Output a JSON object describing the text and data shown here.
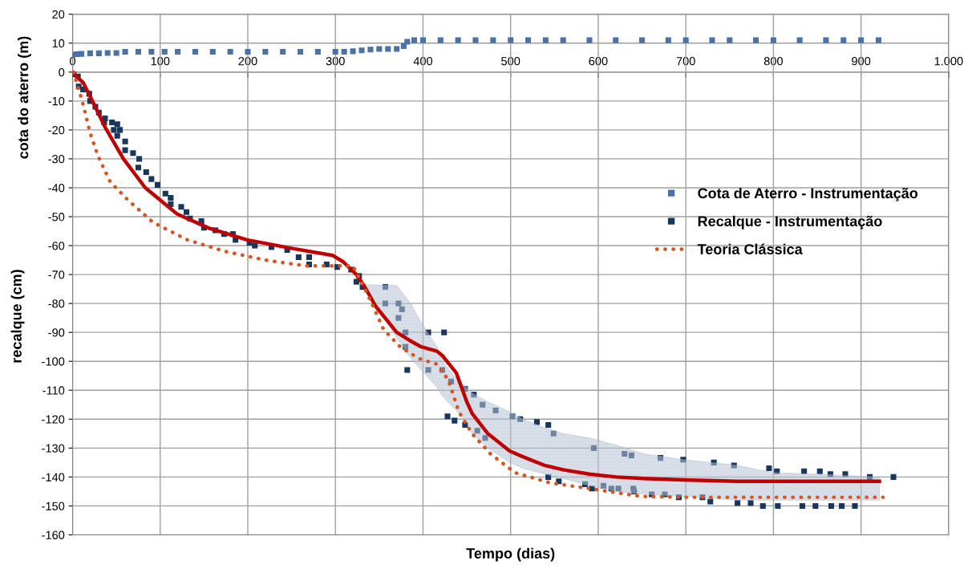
{
  "chart_data": {
    "type": "scatter",
    "xlabel": "Tempo (dias)",
    "ylabel": "recalque (cm)",
    "annotations": [
      "cota do aterro (m)"
    ],
    "xlim": [
      0,
      1000
    ],
    "xticks": [
      0,
      100,
      200,
      300,
      400,
      500,
      600,
      700,
      800,
      900,
      {
        "value": 1000,
        "label": "1.000"
      }
    ],
    "ylim": [
      -160,
      20
    ],
    "yticks": [
      -160,
      -150,
      -140,
      -130,
      -120,
      -110,
      -100,
      -90,
      -80,
      -70,
      -60,
      -50,
      -40,
      -30,
      -20,
      -10,
      0,
      10,
      20
    ],
    "grid": true,
    "legend": "right",
    "series": [
      {
        "name": "Cota de Aterro - Instrumentação",
        "marker": "square",
        "color": "#4a72a8",
        "x": [
          0,
          5,
          10,
          20,
          30,
          40,
          50,
          60,
          75,
          90,
          105,
          120,
          140,
          160,
          180,
          200,
          220,
          240,
          260,
          280,
          300,
          310,
          320,
          330,
          340,
          350,
          360,
          370,
          378,
          382,
          390,
          400,
          420,
          440,
          460,
          480,
          500,
          520,
          540,
          560,
          590,
          620,
          650,
          680,
          700,
          730,
          750,
          780,
          800,
          830,
          860,
          880,
          900,
          920
        ],
        "values": [
          6,
          6.2,
          6.3,
          6.5,
          6.5,
          6.6,
          6.6,
          7,
          7,
          7,
          7,
          7,
          7,
          7,
          7,
          7,
          7,
          7,
          7,
          7,
          7,
          7,
          7.2,
          7.5,
          7.8,
          8,
          8,
          8,
          9,
          10.5,
          11,
          11,
          11,
          11,
          11,
          11,
          11,
          11,
          11,
          11,
          11,
          11,
          11,
          11,
          11,
          11,
          11,
          11,
          11,
          11,
          11,
          11,
          11,
          11
        ]
      },
      {
        "name": "Recalque - Instrumentação",
        "marker": "square",
        "color": "#17375e",
        "x": [
          1,
          6,
          7,
          12,
          19,
          20,
          26,
          30,
          37,
          36,
          45,
          51,
          47,
          54,
          51,
          60,
          60,
          69,
          76,
          75,
          84,
          90,
          97,
          106,
          112,
          112,
          124,
          130,
          134,
          147,
          150,
          163,
          173,
          183,
          186,
          202,
          208,
          227,
          245,
          258,
          270,
          270,
          290,
          302,
          318,
          327,
          324,
          331,
          357,
          357,
          372,
          376,
          372,
          380,
          406,
          424,
          380,
          382,
          406,
          422,
          432,
          448,
          458,
          468,
          428,
          436,
          448,
          462,
          471,
          483,
          502,
          511,
          530,
          543,
          549,
          595,
          630,
          543,
          555,
          585,
          606,
          615,
          640,
          638,
          671,
          697,
          732,
          755,
          795,
          804,
          835,
          853,
          865,
          882,
          910,
          937,
          593,
          623,
          641,
          661,
          676,
          692,
          719,
          728,
          759,
          774,
          788,
          805,
          833,
          848,
          866,
          878,
          893
        ],
        "values": [
          -0.8,
          -1.5,
          -5,
          -6,
          -7.5,
          -10,
          -12,
          -14,
          -16,
          -17.4,
          -17.4,
          -18,
          -20,
          -20,
          -22,
          -24,
          -27,
          -28,
          -30,
          -33,
          -34.6,
          -37,
          -39,
          -42,
          -43.5,
          -45.7,
          -46.6,
          -48.4,
          -50.6,
          -51.5,
          -53.8,
          -54.7,
          -56,
          -56,
          -58,
          -59,
          -60,
          -60.5,
          -61.5,
          -64,
          -64,
          -66.5,
          -66.5,
          -67.4,
          -68.3,
          -70.5,
          -72.5,
          -74.3,
          -74.3,
          -80,
          -80,
          -82,
          -85,
          -90,
          -90,
          -90,
          -95,
          -103,
          -103,
          -103,
          -107,
          -109.5,
          -111.5,
          -115,
          -119,
          -120.5,
          -122,
          -124,
          -126.5,
          -117,
          -119,
          -120,
          -121,
          -122,
          -125,
          -130,
          -132,
          -140,
          -141.5,
          -142.5,
          -143,
          -144,
          -144,
          -132.5,
          -133.4,
          -134,
          -135,
          -136,
          -137,
          -138,
          -138,
          -138,
          -139,
          -139,
          -140,
          -140,
          -144,
          -144,
          -145,
          -146,
          -146,
          -147,
          -147,
          -148.5,
          -149,
          -149,
          -150,
          -150,
          -150,
          -150,
          -150,
          -150,
          -150
        ]
      },
      {
        "type": "line",
        "color": "#c00000",
        "line_style": "solid",
        "marker": "none",
        "x": [
          1,
          12,
          21,
          37,
          58,
          83,
          119,
          156,
          199,
          251,
          297,
          309,
          324,
          333,
          346,
          370,
          386,
          398,
          416,
          422,
          438,
          450,
          456,
          474,
          499,
          514,
          539,
          560,
          590,
          621,
          652,
          698,
          759,
          799,
          850,
          921
        ],
        "values": [
          -0.5,
          -3.6,
          -9,
          -19,
          -30,
          -40,
          -49,
          -54,
          -58,
          -61,
          -63.4,
          -65.6,
          -70,
          -74,
          -81,
          -90,
          -93,
          -95,
          -96.5,
          -98,
          -104,
          -114,
          -118,
          -125,
          -131,
          -133,
          -136,
          -137.5,
          -139,
          -140,
          -140.5,
          -141,
          -141.5,
          -141.5,
          -141.5,
          -141.5
        ],
        "lower": [
          null,
          null,
          null,
          null,
          null,
          null,
          null,
          null,
          null,
          null,
          null,
          null,
          null,
          -73,
          -80,
          -92,
          -99,
          -103,
          -109,
          -112,
          -117,
          -121,
          -125,
          -130,
          -135,
          -137,
          -139,
          -140.5,
          -143,
          -145,
          -146,
          -146.7,
          -148,
          -148,
          -148,
          -148
        ],
        "upper": [
          null,
          null,
          null,
          null,
          null,
          null,
          null,
          null,
          null,
          null,
          null,
          null,
          null,
          -73.5,
          -73.6,
          -73.8,
          -80,
          -86.6,
          -95,
          -100,
          -106,
          -109,
          -111,
          -114,
          -117.5,
          -120,
          -123,
          -125,
          -126.5,
          -129,
          -132,
          -134,
          -136,
          -138.5,
          -139,
          -140
        ]
      },
      {
        "name": "Teoria Clássica",
        "type": "line",
        "color": "#d9531e",
        "line_style": "dotted",
        "marker": "none",
        "x": [
          1,
          11,
          20,
          29,
          43,
          64,
          92,
          131,
          174,
          220,
          266,
          309,
          320,
          337,
          355,
          374,
          395,
          416,
          429,
          441,
          456,
          477,
          505,
          545,
          590,
          649,
          698,
          925
        ],
        "values": [
          0,
          -10,
          -21,
          -29,
          -38,
          -44.5,
          -52,
          -58,
          -62,
          -65,
          -67,
          -67,
          -67,
          -77,
          -89,
          -95,
          -99,
          -101,
          -106.5,
          -117.5,
          -125,
          -132,
          -138.5,
          -142,
          -144,
          -146.7,
          -147,
          -147
        ]
      }
    ]
  }
}
